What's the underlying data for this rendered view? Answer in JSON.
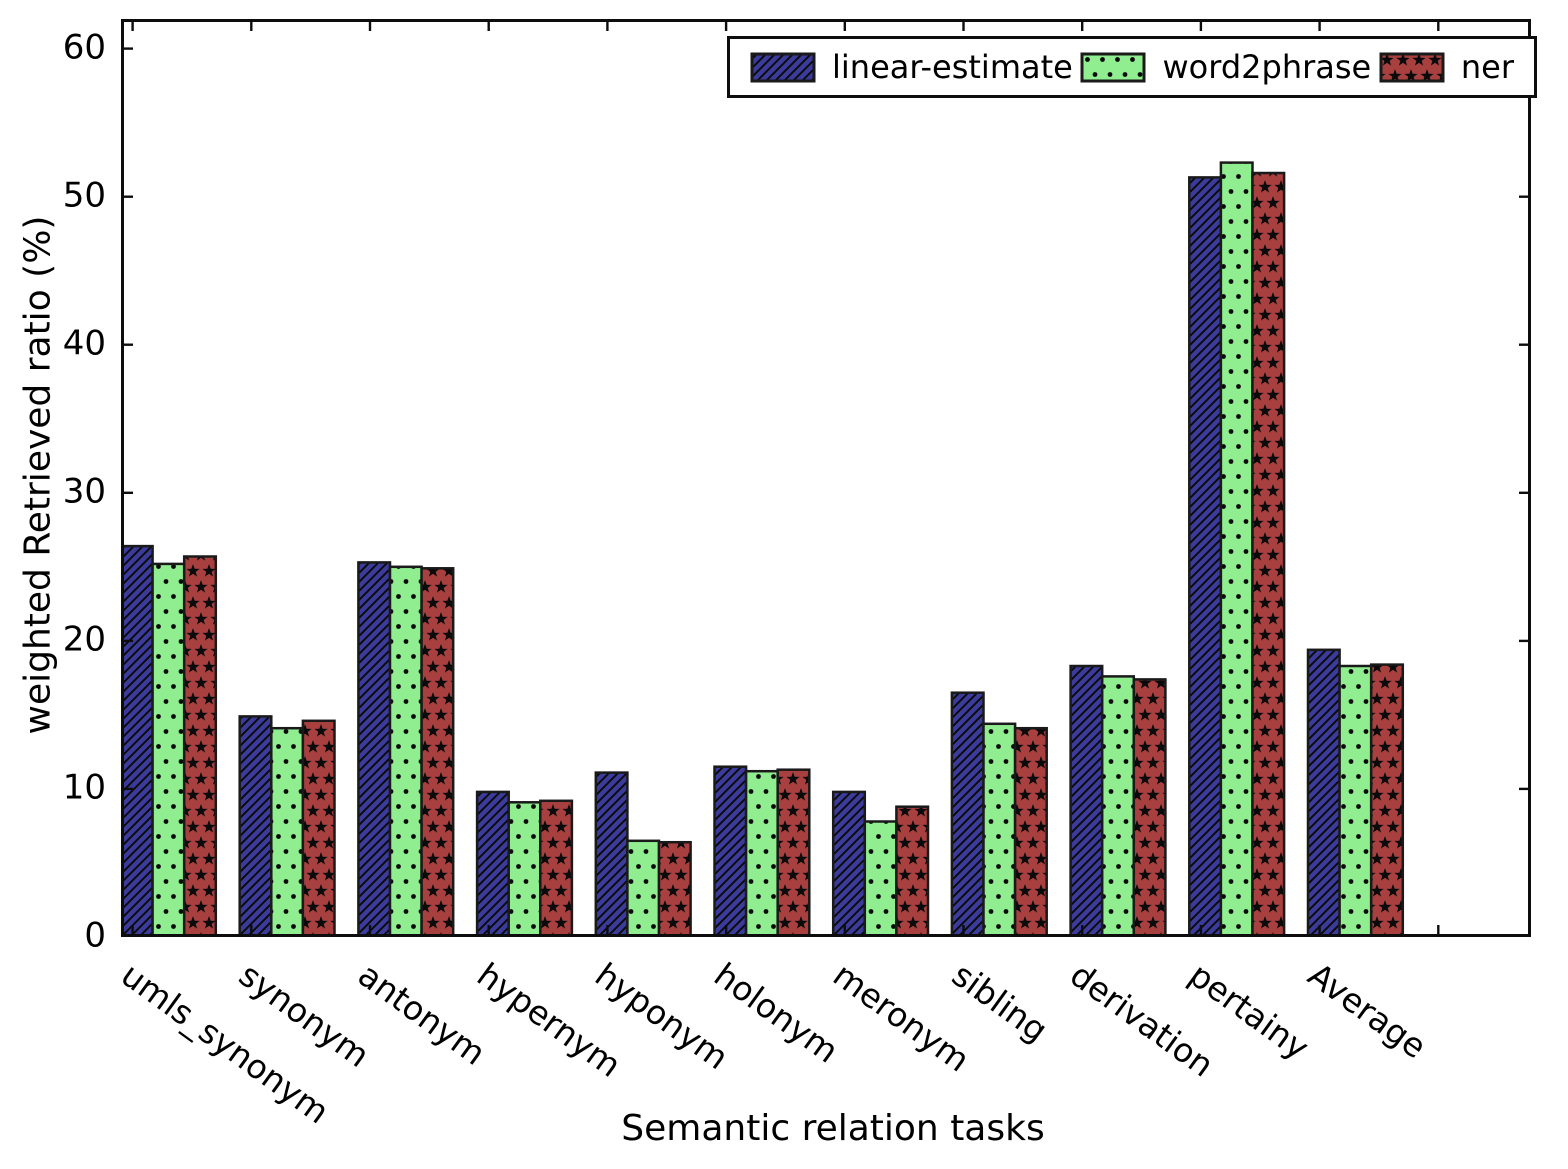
{
  "chart_data": {
    "type": "bar",
    "title": "",
    "xlabel": "Semantic relation tasks",
    "ylabel": "weighted Retrieved ratio (%)",
    "categories": [
      "umls_synonym",
      "synonym",
      "antonym",
      "hypernym",
      "hyponym",
      "holonym",
      "meronym",
      "sibling",
      "derivation",
      "pertainy",
      "Average"
    ],
    "series": [
      {
        "name": "linear-estimate",
        "color": "#3B3B9B",
        "hatch": "diagonal",
        "values": [
          26.4,
          14.9,
          25.3,
          9.8,
          11.1,
          11.5,
          9.8,
          16.5,
          18.3,
          51.3,
          19.4
        ]
      },
      {
        "name": "word2phrase",
        "color": "#90EE90",
        "hatch": "dots",
        "values": [
          25.2,
          14.1,
          25.0,
          9.1,
          6.5,
          11.2,
          7.8,
          14.4,
          17.6,
          52.3,
          18.3
        ]
      },
      {
        "name": "ner",
        "color": "#A94040",
        "hatch": "stars",
        "values": [
          25.7,
          14.6,
          24.9,
          9.2,
          6.4,
          11.3,
          8.8,
          14.1,
          17.4,
          51.6,
          18.4
        ]
      }
    ],
    "ylim": [
      0,
      62
    ],
    "yticks": [
      0,
      10,
      20,
      30,
      40,
      50,
      60
    ],
    "grid": false,
    "legend_position": "upper right",
    "hatch_color": "#0a0a0a",
    "edge_color": "#1a1a1a",
    "frame_color": "#0d0d0d"
  }
}
